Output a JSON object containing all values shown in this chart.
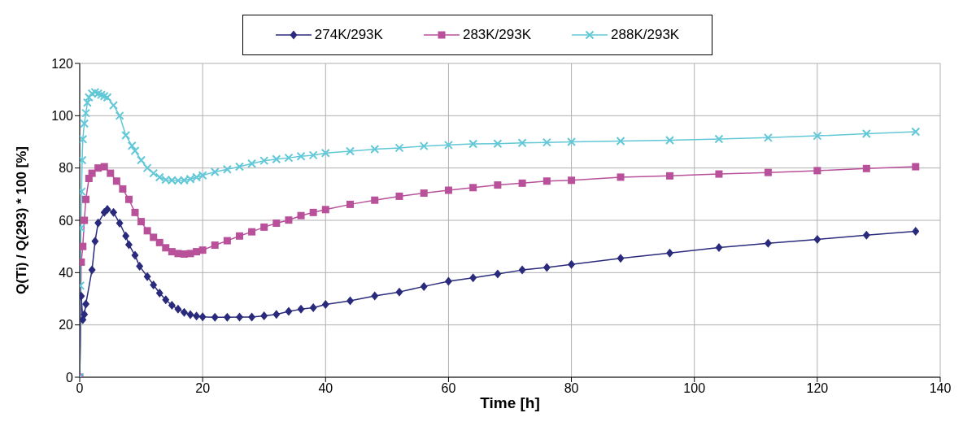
{
  "chart_data": {
    "type": "line",
    "xlabel": "Time [h]",
    "ylabel": "Q(Ti) / Q(293) * 100 [%]",
    "xlim": [
      0,
      140
    ],
    "xticks": [
      0,
      20,
      40,
      60,
      80,
      100,
      120,
      140
    ],
    "ylim": [
      0,
      120
    ],
    "yticks": [
      0,
      20,
      40,
      60,
      80,
      100,
      120
    ],
    "grid": true,
    "legend": "top",
    "line_style": "solid",
    "series": [
      {
        "name": "274K/293K",
        "color": "#2a2a7c",
        "marker": "diamond",
        "x": [
          0,
          0.25,
          0.5,
          0.75,
          1,
          2,
          2.5,
          3,
          4,
          4.5,
          5.5,
          6.5,
          7.5,
          8,
          9,
          9.75,
          11,
          12,
          13,
          14,
          15,
          16,
          17,
          18,
          19,
          20,
          22,
          24,
          26,
          28,
          30,
          32,
          34,
          36,
          38,
          40,
          44,
          48,
          52,
          56,
          60,
          64,
          68,
          72,
          76,
          80,
          88,
          96,
          104,
          112,
          120,
          128,
          136
        ],
        "values": [
          0,
          31,
          22,
          24,
          28,
          41,
          52,
          59,
          63,
          64.2,
          63,
          58.9,
          54,
          50.7,
          46.6,
          42.4,
          38.5,
          35.3,
          32.2,
          29.6,
          27.5,
          26,
          24.8,
          23.9,
          23.4,
          23.1,
          22.9,
          22.9,
          23,
          23,
          23.5,
          24,
          25.2,
          26,
          26.6,
          27.8,
          29.2,
          31.1,
          32.6,
          34.7,
          36.7,
          38,
          39.5,
          41,
          42,
          43.1,
          45.5,
          47.5,
          49.6,
          51.2,
          52.7,
          54.3,
          55.8
        ]
      },
      {
        "name": "283K/293K",
        "color": "#b8509a",
        "marker": "square",
        "x": [
          0,
          0.25,
          0.5,
          0.75,
          1,
          1.5,
          2,
          3,
          4,
          5,
          6,
          7,
          8,
          9,
          10,
          11,
          12,
          13,
          14,
          15,
          16,
          17,
          18,
          19,
          20,
          22,
          24,
          26,
          28,
          30,
          32,
          34,
          36,
          38,
          40,
          44,
          48,
          52,
          56,
          60,
          64,
          68,
          72,
          76,
          80,
          88,
          96,
          104,
          112,
          120,
          128,
          136
        ],
        "values": [
          0,
          44,
          50,
          60,
          68,
          76,
          78,
          80,
          80.5,
          78,
          75,
          72,
          68,
          63,
          59.5,
          56,
          53.5,
          51.5,
          49.5,
          48,
          47.3,
          47.1,
          47.3,
          48,
          48.6,
          50.5,
          52.2,
          54,
          55.6,
          57.4,
          58.9,
          60.1,
          61.8,
          63,
          64.1,
          66.1,
          67.7,
          69.2,
          70.4,
          71.5,
          72.5,
          73.5,
          74.2,
          75,
          75.3,
          76.5,
          77,
          77.7,
          78.3,
          79,
          79.8,
          80.5
        ]
      },
      {
        "name": "288K/293K",
        "color": "#62c8d8",
        "marker": "cross",
        "x": [
          0,
          0.1,
          0.2,
          0.3,
          0.4,
          0.5,
          0.75,
          1,
          1.25,
          1.5,
          2,
          2.5,
          3,
          3.5,
          4,
          4.5,
          5.5,
          6.5,
          7.5,
          8.5,
          9,
          10,
          11,
          12,
          13,
          14,
          15,
          16,
          17,
          18,
          19,
          20,
          22,
          24,
          26,
          28,
          30,
          32,
          34,
          36,
          38,
          40,
          44,
          48,
          52,
          56,
          60,
          64,
          68,
          72,
          76,
          80,
          88,
          96,
          104,
          112,
          120,
          128,
          136
        ],
        "values": [
          0,
          35,
          57,
          71,
          83,
          91,
          97,
          101,
          105,
          107,
          108.5,
          109,
          108.5,
          108,
          107.5,
          107,
          104,
          100,
          92.5,
          88.5,
          86.6,
          83,
          80,
          78,
          76.5,
          75.5,
          75.3,
          75.2,
          75.3,
          75.8,
          76.5,
          77.2,
          78.5,
          79.5,
          80.5,
          81.7,
          82.8,
          83.4,
          83.9,
          84.5,
          84.9,
          85.7,
          86.4,
          87.2,
          87.7,
          88.4,
          88.8,
          89.2,
          89.3,
          89.6,
          89.8,
          90,
          90.3,
          90.6,
          91.1,
          91.6,
          92.3,
          93.1,
          93.9
        ]
      }
    ]
  }
}
